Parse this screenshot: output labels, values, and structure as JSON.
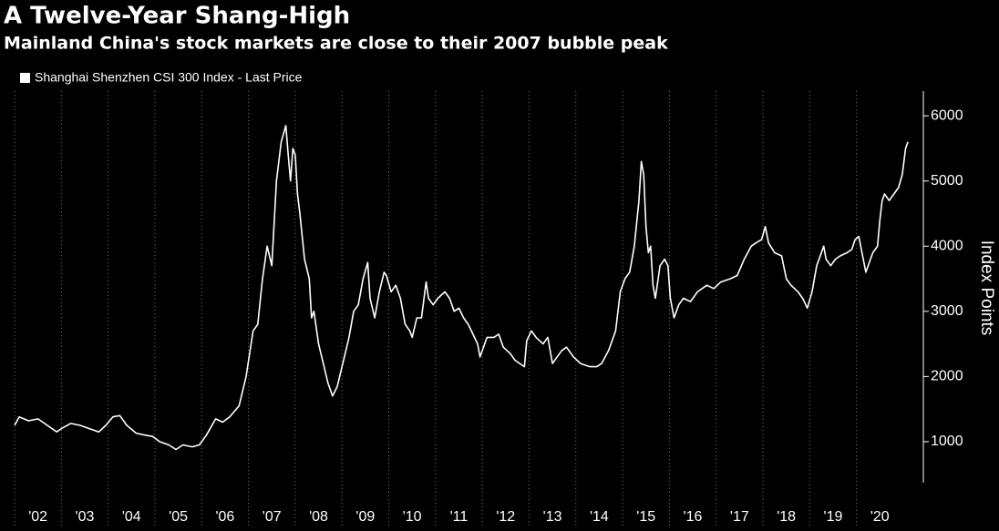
{
  "chart_data": {
    "type": "line",
    "title": "A Twelve-Year Shang-High",
    "subtitle": "Mainland China's stock markets are close to their 2007 bubble peak",
    "ylabel": "Index Points",
    "color": "#ffffff",
    "grid": true,
    "xlim": [
      2002,
      2021.43
    ],
    "ylim": [
      370,
      6380
    ],
    "yticks": [
      1000,
      2000,
      3000,
      4000,
      5000,
      6000
    ],
    "xticks": [
      {
        "value": 2002,
        "label": "'02"
      },
      {
        "value": 2003,
        "label": "'03"
      },
      {
        "value": 2004,
        "label": "'04"
      },
      {
        "value": 2005,
        "label": "'05"
      },
      {
        "value": 2006,
        "label": "'06"
      },
      {
        "value": 2007,
        "label": "'07"
      },
      {
        "value": 2008,
        "label": "'08"
      },
      {
        "value": 2009,
        "label": "'09"
      },
      {
        "value": 2010,
        "label": "'10"
      },
      {
        "value": 2011,
        "label": "'11"
      },
      {
        "value": 2012,
        "label": "'12"
      },
      {
        "value": 2013,
        "label": "'13"
      },
      {
        "value": 2014,
        "label": "'14"
      },
      {
        "value": 2015,
        "label": "'15"
      },
      {
        "value": 2016,
        "label": "'16"
      },
      {
        "value": 2017,
        "label": "'17"
      },
      {
        "value": 2018,
        "label": "'18"
      },
      {
        "value": 2019,
        "label": "'19"
      },
      {
        "value": 2020,
        "label": "'20"
      }
    ],
    "series": [
      {
        "name": "Shanghai Shenzhen CSI 300 Index - Last Price",
        "color": "#ffffff",
        "x": [
          2002.0,
          2002.1,
          2002.3,
          2002.5,
          2002.7,
          2002.9,
          2003.0,
          2003.2,
          2003.4,
          2003.6,
          2003.8,
          2003.95,
          2004.1,
          2004.25,
          2004.4,
          2004.6,
          2004.8,
          2004.95,
          2005.1,
          2005.3,
          2005.45,
          2005.6,
          2005.8,
          2005.95,
          2006.1,
          2006.3,
          2006.45,
          2006.6,
          2006.8,
          2006.95,
          2007.1,
          2007.2,
          2007.3,
          2007.4,
          2007.5,
          2007.6,
          2007.7,
          2007.8,
          2007.85,
          2007.9,
          2007.95,
          2008.0,
          2008.05,
          2008.1,
          2008.2,
          2008.3,
          2008.35,
          2008.4,
          2008.5,
          2008.6,
          2008.7,
          2008.8,
          2008.9,
          2008.95,
          2009.05,
          2009.15,
          2009.25,
          2009.35,
          2009.45,
          2009.55,
          2009.6,
          2009.7,
          2009.8,
          2009.9,
          2009.95,
          2010.05,
          2010.15,
          2010.25,
          2010.35,
          2010.45,
          2010.5,
          2010.6,
          2010.7,
          2010.8,
          2010.85,
          2010.95,
          2011.05,
          2011.2,
          2011.3,
          2011.4,
          2011.5,
          2011.6,
          2011.7,
          2011.8,
          2011.9,
          2011.95,
          2012.1,
          2012.25,
          2012.35,
          2012.45,
          2012.6,
          2012.7,
          2012.8,
          2012.9,
          2012.95,
          2013.05,
          2013.15,
          2013.3,
          2013.4,
          2013.5,
          2013.6,
          2013.7,
          2013.8,
          2013.95,
          2014.1,
          2014.3,
          2014.45,
          2014.55,
          2014.7,
          2014.85,
          2014.95,
          2015.05,
          2015.15,
          2015.25,
          2015.35,
          2015.4,
          2015.45,
          2015.5,
          2015.55,
          2015.6,
          2015.65,
          2015.7,
          2015.8,
          2015.9,
          2015.97,
          2016.02,
          2016.1,
          2016.2,
          2016.3,
          2016.45,
          2016.6,
          2016.8,
          2016.95,
          2017.1,
          2017.3,
          2017.45,
          2017.6,
          2017.75,
          2017.85,
          2017.97,
          2018.05,
          2018.12,
          2018.25,
          2018.4,
          2018.5,
          2018.6,
          2018.75,
          2018.85,
          2018.95,
          2019.05,
          2019.15,
          2019.3,
          2019.35,
          2019.45,
          2019.55,
          2019.65,
          2019.8,
          2019.9,
          2019.97,
          2020.05,
          2020.2,
          2020.35,
          2020.45,
          2020.5,
          2020.55,
          2020.6,
          2020.7,
          2020.8,
          2020.9,
          2020.98,
          2021.05,
          2021.1
        ],
        "values": [
          1250,
          1380,
          1320,
          1350,
          1250,
          1150,
          1200,
          1280,
          1250,
          1200,
          1150,
          1250,
          1380,
          1400,
          1250,
          1130,
          1100,
          1080,
          1000,
          950,
          880,
          950,
          920,
          950,
          1100,
          1350,
          1300,
          1380,
          1550,
          2000,
          2700,
          2800,
          3500,
          4000,
          3700,
          5000,
          5600,
          5850,
          5400,
          5000,
          5500,
          5400,
          4800,
          4500,
          3800,
          3500,
          2900,
          3000,
          2500,
          2200,
          1900,
          1700,
          1850,
          2000,
          2300,
          2600,
          3000,
          3100,
          3500,
          3750,
          3200,
          2900,
          3300,
          3600,
          3550,
          3300,
          3400,
          3200,
          2800,
          2700,
          2600,
          2900,
          2900,
          3450,
          3200,
          3100,
          3200,
          3300,
          3200,
          3000,
          3050,
          2900,
          2800,
          2650,
          2500,
          2300,
          2600,
          2600,
          2650,
          2450,
          2350,
          2250,
          2200,
          2150,
          2550,
          2700,
          2600,
          2500,
          2600,
          2200,
          2300,
          2400,
          2450,
          2300,
          2200,
          2150,
          2150,
          2200,
          2400,
          2700,
          3300,
          3500,
          3600,
          4000,
          4700,
          5300,
          5100,
          4300,
          3900,
          4000,
          3400,
          3200,
          3700,
          3800,
          3700,
          3200,
          2900,
          3100,
          3200,
          3150,
          3300,
          3400,
          3350,
          3450,
          3500,
          3550,
          3800,
          4000,
          4050,
          4100,
          4300,
          4050,
          3900,
          3850,
          3500,
          3400,
          3300,
          3200,
          3050,
          3300,
          3700,
          4000,
          3800,
          3700,
          3800,
          3850,
          3900,
          3950,
          4100,
          4150,
          3600,
          3900,
          4000,
          4400,
          4700,
          4800,
          4700,
          4800,
          4900,
          5100,
          5500,
          5600
        ]
      }
    ]
  }
}
